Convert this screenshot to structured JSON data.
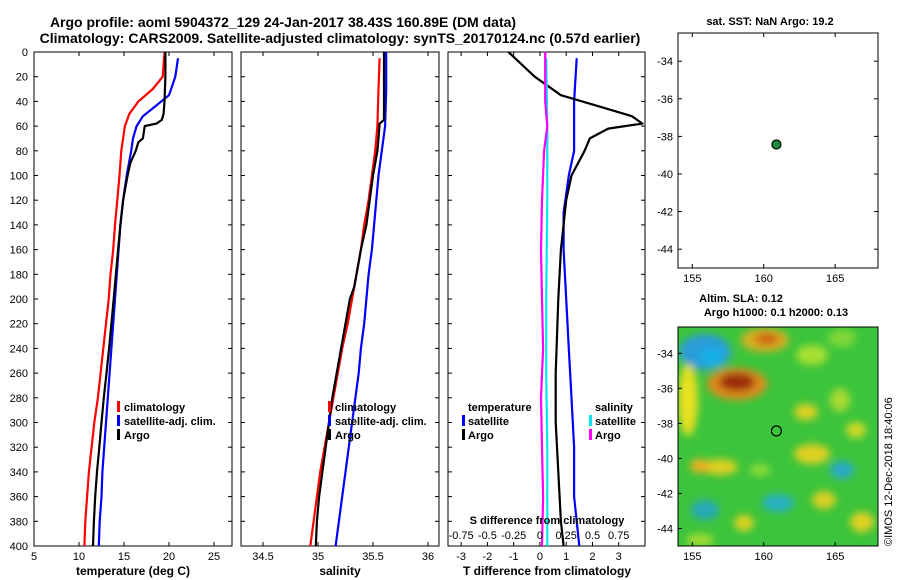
{
  "title": {
    "line1": "Argo profile: aoml 5904372_129 24-Jan-2017 38.43S 160.89E (DM data)",
    "line2": "Climatology: CARS2009. Satellite-adjusted climatology: synTS_20170124.nc (0.57d earlier)"
  },
  "colors": {
    "climatology": "#ff0000",
    "satellite": "#0000ff",
    "argo": "#000000",
    "s_satellite": "#00e5ee",
    "s_argo": "#ff00ff"
  },
  "chart_data": [
    {
      "type": "line",
      "panel": "temperature",
      "xlabel": "temperature (deg C)",
      "ylabel": "",
      "xlim": [
        5,
        27
      ],
      "xticks": [
        5,
        10,
        15,
        20,
        25
      ],
      "ylim": [
        400,
        0
      ],
      "yticks": [
        0,
        20,
        40,
        60,
        80,
        100,
        120,
        140,
        160,
        180,
        200,
        220,
        240,
        260,
        280,
        300,
        320,
        340,
        360,
        380,
        400
      ],
      "legend": [
        "climatology",
        "satellite-adj. clim.",
        "Argo"
      ],
      "series": [
        {
          "name": "climatology",
          "color": "#ff0000",
          "points": [
            [
              19.5,
              0
            ],
            [
              19.3,
              20
            ],
            [
              18.2,
              30
            ],
            [
              16.6,
              40
            ],
            [
              15.6,
              50
            ],
            [
              15.1,
              60
            ],
            [
              14.9,
              70
            ],
            [
              14.7,
              80
            ],
            [
              14.5,
              100
            ],
            [
              14.25,
              120
            ],
            [
              14.0,
              140
            ],
            [
              13.8,
              160
            ],
            [
              13.5,
              180
            ],
            [
              13.3,
              200
            ],
            [
              13.0,
              220
            ],
            [
              12.7,
              240
            ],
            [
              12.4,
              260
            ],
            [
              12.1,
              280
            ],
            [
              11.7,
              300
            ],
            [
              11.4,
              320
            ],
            [
              11.1,
              340
            ],
            [
              10.9,
              360
            ],
            [
              10.7,
              380
            ],
            [
              10.6,
              400
            ]
          ]
        },
        {
          "name": "satellite-adj. clim.",
          "color": "#0000ff",
          "points": [
            [
              21.0,
              5
            ],
            [
              20.7,
              20
            ],
            [
              20.0,
              35
            ],
            [
              18.3,
              45
            ],
            [
              17.1,
              52
            ],
            [
              16.4,
              60
            ],
            [
              16.0,
              70
            ],
            [
              15.8,
              80
            ],
            [
              15.3,
              100
            ],
            [
              14.9,
              120
            ],
            [
              14.6,
              140
            ],
            [
              14.4,
              160
            ],
            [
              14.2,
              180
            ],
            [
              14.0,
              200
            ],
            [
              13.8,
              220
            ],
            [
              13.6,
              240
            ],
            [
              13.4,
              260
            ],
            [
              13.2,
              280
            ],
            [
              13.0,
              300
            ],
            [
              12.8,
              320
            ],
            [
              12.6,
              340
            ],
            [
              12.5,
              360
            ],
            [
              12.3,
              380
            ],
            [
              12.2,
              400
            ]
          ]
        },
        {
          "name": "Argo",
          "color": "#000000",
          "points": [
            [
              19.6,
              0
            ],
            [
              19.6,
              20
            ],
            [
              19.5,
              40
            ],
            [
              19.4,
              50
            ],
            [
              19.2,
              55
            ],
            [
              18.6,
              58
            ],
            [
              17.3,
              60
            ],
            [
              17.1,
              70
            ],
            [
              16.6,
              73
            ],
            [
              16.3,
              80
            ],
            [
              15.7,
              90
            ],
            [
              15.4,
              100
            ],
            [
              14.9,
              120
            ],
            [
              14.6,
              140
            ],
            [
              14.35,
              160
            ],
            [
              14.1,
              180
            ],
            [
              13.85,
              200
            ],
            [
              13.6,
              220
            ],
            [
              13.35,
              240
            ],
            [
              13.05,
              260
            ],
            [
              12.75,
              280
            ],
            [
              12.5,
              300
            ],
            [
              12.25,
              320
            ],
            [
              12.0,
              340
            ],
            [
              11.8,
              360
            ],
            [
              11.65,
              380
            ],
            [
              11.55,
              400
            ]
          ]
        }
      ]
    },
    {
      "type": "line",
      "panel": "salinity",
      "xlabel": "salinity",
      "xlim": [
        34.3,
        36.1
      ],
      "xticks": [
        34.5,
        35,
        35.5,
        36
      ],
      "ylim": [
        400,
        0
      ],
      "legend": [
        "climatology",
        "satellite-adj. clim.",
        "Argo"
      ],
      "series": [
        {
          "name": "climatology",
          "color": "#ff0000",
          "points": [
            [
              35.56,
              5
            ],
            [
              35.55,
              30
            ],
            [
              35.54,
              60
            ],
            [
              35.52,
              80
            ],
            [
              35.49,
              100
            ],
            [
              35.46,
              120
            ],
            [
              35.42,
              140
            ],
            [
              35.39,
              160
            ],
            [
              35.35,
              180
            ],
            [
              35.31,
              200
            ],
            [
              35.27,
              220
            ],
            [
              35.22,
              240
            ],
            [
              35.18,
              260
            ],
            [
              35.14,
              280
            ],
            [
              35.1,
              300
            ],
            [
              35.06,
              320
            ],
            [
              35.02,
              340
            ],
            [
              34.99,
              360
            ],
            [
              34.96,
              380
            ],
            [
              34.93,
              400
            ]
          ]
        },
        {
          "name": "satellite-adj. clim.",
          "color": "#0000ff",
          "points": [
            [
              35.62,
              0
            ],
            [
              35.62,
              30
            ],
            [
              35.61,
              60
            ],
            [
              35.58,
              80
            ],
            [
              35.55,
              100
            ],
            [
              35.53,
              120
            ],
            [
              35.51,
              140
            ],
            [
              35.49,
              160
            ],
            [
              35.46,
              180
            ],
            [
              35.44,
              200
            ],
            [
              35.42,
              220
            ],
            [
              35.39,
              240
            ],
            [
              35.37,
              260
            ],
            [
              35.34,
              280
            ],
            [
              35.31,
              300
            ],
            [
              35.28,
              320
            ],
            [
              35.25,
              340
            ],
            [
              35.22,
              360
            ],
            [
              35.19,
              380
            ],
            [
              35.16,
              400
            ]
          ]
        },
        {
          "name": "Argo",
          "color": "#000000",
          "points": [
            [
              35.6,
              0
            ],
            [
              35.6,
              30
            ],
            [
              35.6,
              55
            ],
            [
              35.56,
              58
            ],
            [
              35.55,
              70
            ],
            [
              35.54,
              80
            ],
            [
              35.5,
              100
            ],
            [
              35.47,
              120
            ],
            [
              35.44,
              140
            ],
            [
              35.39,
              160
            ],
            [
              35.35,
              180
            ],
            [
              35.33,
              190
            ],
            [
              35.29,
              200
            ],
            [
              35.25,
              220
            ],
            [
              35.21,
              240
            ],
            [
              35.17,
              260
            ],
            [
              35.13,
              280
            ],
            [
              35.1,
              300
            ],
            [
              35.07,
              320
            ],
            [
              35.04,
              340
            ],
            [
              35.01,
              360
            ],
            [
              34.99,
              380
            ],
            [
              34.98,
              400
            ]
          ]
        }
      ]
    },
    {
      "type": "line",
      "panel": "difference",
      "xlabel": "T difference from climatology",
      "xlim": [
        -3.5,
        4
      ],
      "xticks": [
        -3,
        -2,
        -1,
        0,
        1,
        2,
        3
      ],
      "x2label": "S difference from climatology",
      "x2ticks": [
        -0.75,
        -0.5,
        -0.25,
        0,
        0.25,
        0.5,
        0.75
      ],
      "x2ticklabels": [
        "-0.75",
        "-0.5",
        "-0.25",
        "0",
        "0.25",
        "0.5",
        "0.75"
      ],
      "ylim": [
        400,
        0
      ],
      "legend_temperature": {
        "title": "temperature",
        "items": [
          "satellite",
          "Argo"
        ]
      },
      "legend_salinity": {
        "title": "salinity",
        "items": [
          "satellite",
          "Argo"
        ]
      },
      "series": [
        {
          "name": "T satellite",
          "color": "#0000ff",
          "points": [
            [
              1.4,
              5
            ],
            [
              1.3,
              40
            ],
            [
              1.3,
              80
            ],
            [
              1.1,
              100
            ],
            [
              0.9,
              130
            ],
            [
              0.9,
              160
            ],
            [
              1.0,
              200
            ],
            [
              1.1,
              240
            ],
            [
              1.2,
              280
            ],
            [
              1.3,
              320
            ],
            [
              1.3,
              360
            ],
            [
              1.5,
              400
            ]
          ]
        },
        {
          "name": "T Argo",
          "color": "#000000",
          "points": [
            [
              -1.2,
              0
            ],
            [
              -0.2,
              20
            ],
            [
              0.8,
              35
            ],
            [
              2.4,
              45
            ],
            [
              3.5,
              52
            ],
            [
              3.9,
              58
            ],
            [
              2.6,
              62
            ],
            [
              1.9,
              70
            ],
            [
              1.7,
              80
            ],
            [
              1.2,
              100
            ],
            [
              1.0,
              120
            ],
            [
              0.8,
              160
            ],
            [
              0.7,
              200
            ],
            [
              0.6,
              260
            ],
            [
              0.6,
              300
            ],
            [
              0.7,
              340
            ],
            [
              0.8,
              380
            ],
            [
              0.9,
              400
            ]
          ]
        },
        {
          "name": "S satellite",
          "color": "#00e5ee",
          "points": [
            [
              0.06,
              5
            ],
            [
              0.07,
              60
            ],
            [
              0.07,
              120
            ],
            [
              0.06,
              200
            ],
            [
              0.06,
              260
            ],
            [
              0.07,
              320
            ],
            [
              0.07,
              400
            ]
          ]
        },
        {
          "name": "S Argo",
          "color": "#ff00ff",
          "points": [
            [
              0.05,
              0
            ],
            [
              0.05,
              40
            ],
            [
              0.07,
              60
            ],
            [
              0.04,
              80
            ],
            [
              0.02,
              120
            ],
            [
              0.01,
              160
            ],
            [
              0.02,
              200
            ],
            [
              0.03,
              240
            ],
            [
              0.01,
              280
            ],
            [
              0.02,
              320
            ],
            [
              0.03,
              360
            ],
            [
              0.02,
              400
            ]
          ]
        }
      ]
    },
    {
      "type": "scatter",
      "panel": "location",
      "title": "sat. SST: NaN Argo: 19.2",
      "xlim": [
        154,
        168
      ],
      "xticks": [
        155,
        160,
        165
      ],
      "ylim": [
        -45,
        -32.5
      ],
      "yticks": [
        -34,
        -36,
        -38,
        -40,
        -42,
        -44
      ],
      "points": [
        [
          160.89,
          -38.43
        ]
      ]
    },
    {
      "type": "heatmap",
      "panel": "altimetry",
      "title_line1": "Altim. SLA: 0.12",
      "title_line2": "Argo h1000: 0.1 h2000: 0.13",
      "xlim": [
        154,
        168
      ],
      "xticks": [
        155,
        160,
        165
      ],
      "ylim": [
        -45,
        -32.5
      ],
      "yticks": [
        -34,
        -36,
        -38,
        -40,
        -42,
        -44
      ],
      "marker": [
        160.89,
        -38.43
      ]
    }
  ],
  "watermark": "©IMOS 12-Dec-2018 18:40:06"
}
